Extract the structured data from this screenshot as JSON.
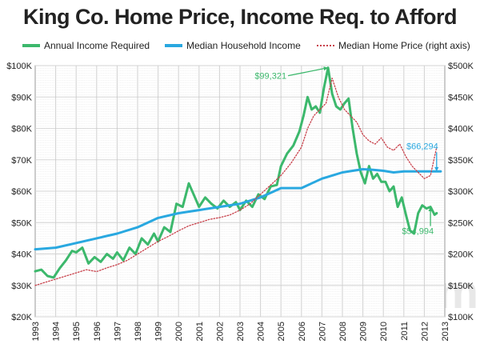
{
  "chart_data": {
    "type": "line",
    "title": "King Co. Home Price, Income Req. to Afford",
    "x_ticks": [
      "1993",
      "1994",
      "1995",
      "1996",
      "1997",
      "1998",
      "1999",
      "2000",
      "2001",
      "2002",
      "2003",
      "2004",
      "2005",
      "2006",
      "2007",
      "2008",
      "2009",
      "2010",
      "2011",
      "2012",
      "2013"
    ],
    "xlim": [
      1993,
      2013
    ],
    "left_axis": {
      "ylim": [
        20000,
        100000
      ],
      "ticks": [
        "$20K",
        "$30K",
        "$40K",
        "$50K",
        "$60K",
        "$70K",
        "$80K",
        "$90K",
        "$100K"
      ]
    },
    "right_axis": {
      "ylim": [
        100000,
        500000
      ],
      "ticks": [
        "$100K",
        "$150K",
        "$200K",
        "$250K",
        "$300K",
        "$350K",
        "$400K",
        "$450K",
        "$500K"
      ]
    },
    "grid": true,
    "legend_position": "top",
    "series": [
      {
        "name": "Annual Income Required",
        "axis": "left",
        "color": "#3cb86c",
        "style": "solid-thick",
        "x": [
          1993.0,
          1993.3,
          1993.6,
          1993.9,
          1994.2,
          1994.5,
          1994.8,
          1995.0,
          1995.3,
          1995.6,
          1995.9,
          1996.2,
          1996.5,
          1996.8,
          1997.0,
          1997.3,
          1997.6,
          1997.9,
          1998.2,
          1998.5,
          1998.8,
          1999.0,
          1999.3,
          1999.6,
          1999.9,
          2000.2,
          2000.5,
          2000.8,
          2001.0,
          2001.3,
          2001.6,
          2001.9,
          2002.2,
          2002.5,
          2002.8,
          2003.0,
          2003.3,
          2003.6,
          2003.9,
          2004.2,
          2004.5,
          2004.8,
          2005.0,
          2005.3,
          2005.6,
          2005.9,
          2006.1,
          2006.3,
          2006.5,
          2006.7,
          2006.9,
          2007.1,
          2007.3,
          2007.5,
          2007.7,
          2007.9,
          2008.1,
          2008.3,
          2008.5,
          2008.7,
          2008.9,
          2009.1,
          2009.3,
          2009.5,
          2009.7,
          2009.9,
          2010.1,
          2010.3,
          2010.5,
          2010.7,
          2010.9,
          2011.1,
          2011.3,
          2011.5,
          2011.7,
          2011.9,
          2012.1,
          2012.3,
          2012.5,
          2012.6
        ],
        "values": [
          34500,
          35000,
          33000,
          32500,
          35500,
          38000,
          41000,
          40500,
          42000,
          37000,
          39000,
          37500,
          40000,
          38500,
          40500,
          38000,
          42000,
          40000,
          45000,
          43000,
          46500,
          44000,
          48500,
          47000,
          56000,
          55000,
          62500,
          58000,
          55000,
          58000,
          56000,
          54500,
          57000,
          55000,
          56500,
          54000,
          57000,
          55000,
          59000,
          57500,
          61500,
          62000,
          68000,
          72000,
          74500,
          79000,
          84000,
          90000,
          86000,
          87000,
          85000,
          93000,
          99321,
          91000,
          87000,
          86000,
          88000,
          89500,
          80000,
          72000,
          66000,
          62500,
          68000,
          64000,
          65500,
          63000,
          63000,
          60000,
          61500,
          55000,
          58000,
          52500,
          47500,
          46500,
          53000,
          55500,
          54500,
          54994,
          52500,
          53000
        ]
      },
      {
        "name": "Median Household Income",
        "axis": "left",
        "color": "#29a8e0",
        "style": "solid-thick",
        "x": [
          1993.0,
          1994.0,
          1995.0,
          1996.0,
          1997.0,
          1998.0,
          1999.0,
          2000.0,
          2001.0,
          2002.0,
          2003.0,
          2004.0,
          2004.5,
          2005.0,
          2005.5,
          2006.0,
          2006.5,
          2007.0,
          2007.5,
          2008.0,
          2008.5,
          2009.0,
          2009.5,
          2010.0,
          2010.5,
          2011.0,
          2011.5,
          2012.0,
          2012.5,
          2012.8
        ],
        "values": [
          41500,
          42000,
          43500,
          45000,
          46500,
          48500,
          51500,
          53000,
          54000,
          55000,
          56000,
          58000,
          59500,
          61000,
          61000,
          61000,
          62500,
          64000,
          65000,
          66000,
          66500,
          67000,
          66800,
          66500,
          66000,
          66300,
          66294,
          66294,
          66294,
          66294
        ]
      },
      {
        "name": "Median Home Price (right axis)",
        "axis": "right",
        "color": "#c8414b",
        "style": "dotted",
        "x": [
          1993.0,
          1993.5,
          1994.0,
          1994.5,
          1995.0,
          1995.5,
          1996.0,
          1996.5,
          1997.0,
          1997.5,
          1998.0,
          1998.5,
          1999.0,
          1999.5,
          2000.0,
          2000.5,
          2001.0,
          2001.5,
          2002.0,
          2002.5,
          2003.0,
          2003.5,
          2004.0,
          2004.5,
          2005.0,
          2005.5,
          2006.0,
          2006.3,
          2006.6,
          2006.9,
          2007.2,
          2007.5,
          2007.8,
          2008.1,
          2008.4,
          2008.7,
          2009.0,
          2009.3,
          2009.6,
          2009.9,
          2010.2,
          2010.5,
          2010.8,
          2011.1,
          2011.4,
          2011.7,
          2012.0,
          2012.3,
          2012.6
        ],
        "values": [
          150000,
          155000,
          160000,
          165000,
          170000,
          175000,
          172000,
          178000,
          183000,
          190000,
          200000,
          210000,
          220000,
          228000,
          237000,
          245000,
          250000,
          255000,
          258000,
          262000,
          270000,
          280000,
          295000,
          310000,
          325000,
          345000,
          370000,
          400000,
          420000,
          430000,
          440000,
          480000,
          450000,
          430000,
          420000,
          410000,
          390000,
          380000,
          375000,
          385000,
          370000,
          365000,
          375000,
          355000,
          340000,
          330000,
          320000,
          325000,
          370000
        ]
      }
    ],
    "annotations": [
      {
        "text": "$99,321",
        "series": "Annual Income Required",
        "x": 2007.3,
        "value": 99321,
        "color": "#3cb86c"
      },
      {
        "text": "$66,294",
        "series": "Median Household Income",
        "x": 2012.6,
        "value": 66294,
        "color": "#29a8e0"
      },
      {
        "text": "$54,994",
        "series": "Annual Income Required",
        "x": 2012.3,
        "value": 54994,
        "color": "#3cb86c"
      }
    ]
  },
  "watermark": "SeattleBubble.com"
}
